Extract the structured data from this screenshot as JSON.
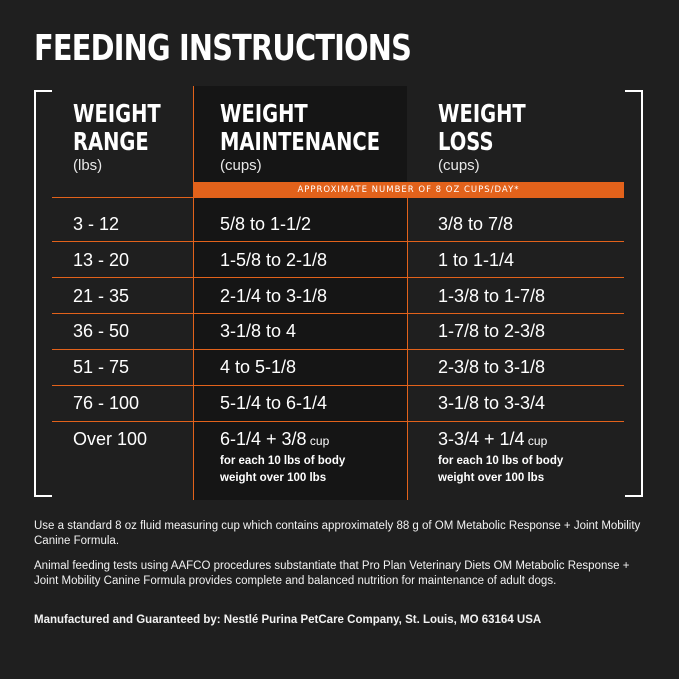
{
  "title": "FEEDING INSTRUCTIONS",
  "columns": [
    {
      "line1": "WEIGHT",
      "line2": "RANGE",
      "unit": "(lbs)"
    },
    {
      "line1": "WEIGHT",
      "line2": "MAINTENANCE",
      "unit": "(cups)"
    },
    {
      "line1": "WEIGHT",
      "line2": "LOSS",
      "unit": "(cups)"
    }
  ],
  "band_label": "APPROXIMATE NUMBER OF 8 OZ CUPS/DAY*",
  "rows": [
    {
      "range": "3 - 12",
      "maintenance": "5/8 to 1-1/2",
      "loss": "3/8 to 7/8"
    },
    {
      "range": "13 - 20",
      "maintenance": "1-5/8 to 2-1/8",
      "loss": "1 to 1-1/4"
    },
    {
      "range": "21 - 35",
      "maintenance": "2-1/4 to 3-1/8",
      "loss": "1-3/8 to 1-7/8"
    },
    {
      "range": "36 - 50",
      "maintenance": "3-1/8 to 4",
      "loss": "1-7/8 to 2-3/8"
    },
    {
      "range": "51 - 75",
      "maintenance": "4 to 5-1/8",
      "loss": "2-3/8 to 3-1/8"
    },
    {
      "range": "76 - 100",
      "maintenance": "5-1/4 to 6-1/4",
      "loss": "3-1/8 to 3-3/4"
    }
  ],
  "last_row": {
    "range": "Over 100",
    "maintenance_main": "6-1/4 + 3/8",
    "maintenance_unit": " cup",
    "maintenance_note1": "for each 10 lbs of body",
    "maintenance_note2": "weight over 100 lbs",
    "loss_main": "3-3/4 + 1/4",
    "loss_unit": " cup",
    "loss_note1": "for each 10 lbs of body",
    "loss_note2": "weight over 100 lbs"
  },
  "footer": {
    "p1": "Use a standard 8 oz fluid measuring cup which contains approximately 88 g of OM Metabolic Response + Joint Mobility Canine Formula.",
    "p2": "Animal feeding tests using AAFCO procedures substantiate that Pro Plan Veterinary Diets OM Metabolic Response + Joint Mobility Canine Formula provides complete and balanced nutrition for maintenance of adult dogs.",
    "p3": "Manufactured and Guaranteed by: Nestlé Purina PetCare Company, St. Louis, MO 63164 USA"
  },
  "colors": {
    "accent": "#e2621b",
    "background": "#1f1f1f",
    "highlight_column": "#151515"
  }
}
